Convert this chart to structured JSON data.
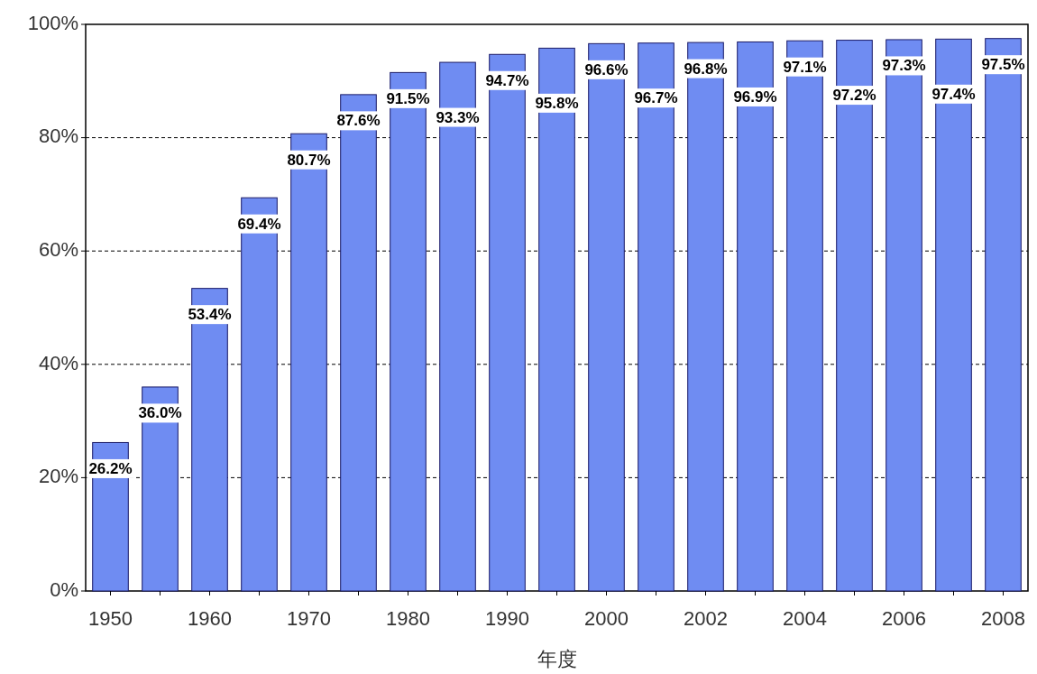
{
  "chart_data": {
    "type": "bar",
    "xlabel": "年度",
    "categories": [
      "1950",
      null,
      "1960",
      null,
      "1970",
      null,
      "1980",
      null,
      "1990",
      null,
      "2000",
      null,
      "2002",
      null,
      "2004",
      null,
      "2006",
      null,
      "2008"
    ],
    "values": [
      26.2,
      36.0,
      53.4,
      69.4,
      80.7,
      87.6,
      91.5,
      93.3,
      94.7,
      95.8,
      96.6,
      96.7,
      96.8,
      96.9,
      97.1,
      97.2,
      97.3,
      97.4,
      97.5
    ],
    "color": "#6f8cf2",
    "value_labels": [
      "26.2%",
      "36.0%",
      "53.4%",
      "69.4%",
      "80.7%",
      "87.6%",
      "91.5%",
      "93.3%",
      "94.7%",
      "95.8%",
      "96.6%",
      "96.7%",
      "96.8%",
      "96.9%",
      "97.1%",
      "97.2%",
      "97.3%",
      "97.4%",
      "97.5%"
    ],
    "ylim": [
      0,
      100
    ],
    "yticks": [
      {
        "value": 0,
        "label": "0%"
      },
      {
        "value": 20,
        "label": "20%"
      },
      {
        "value": 40,
        "label": "40%"
      },
      {
        "value": 60,
        "label": "60%"
      },
      {
        "value": 80,
        "label": "80%"
      },
      {
        "value": 100,
        "label": "100%"
      }
    ],
    "grid": "y"
  }
}
